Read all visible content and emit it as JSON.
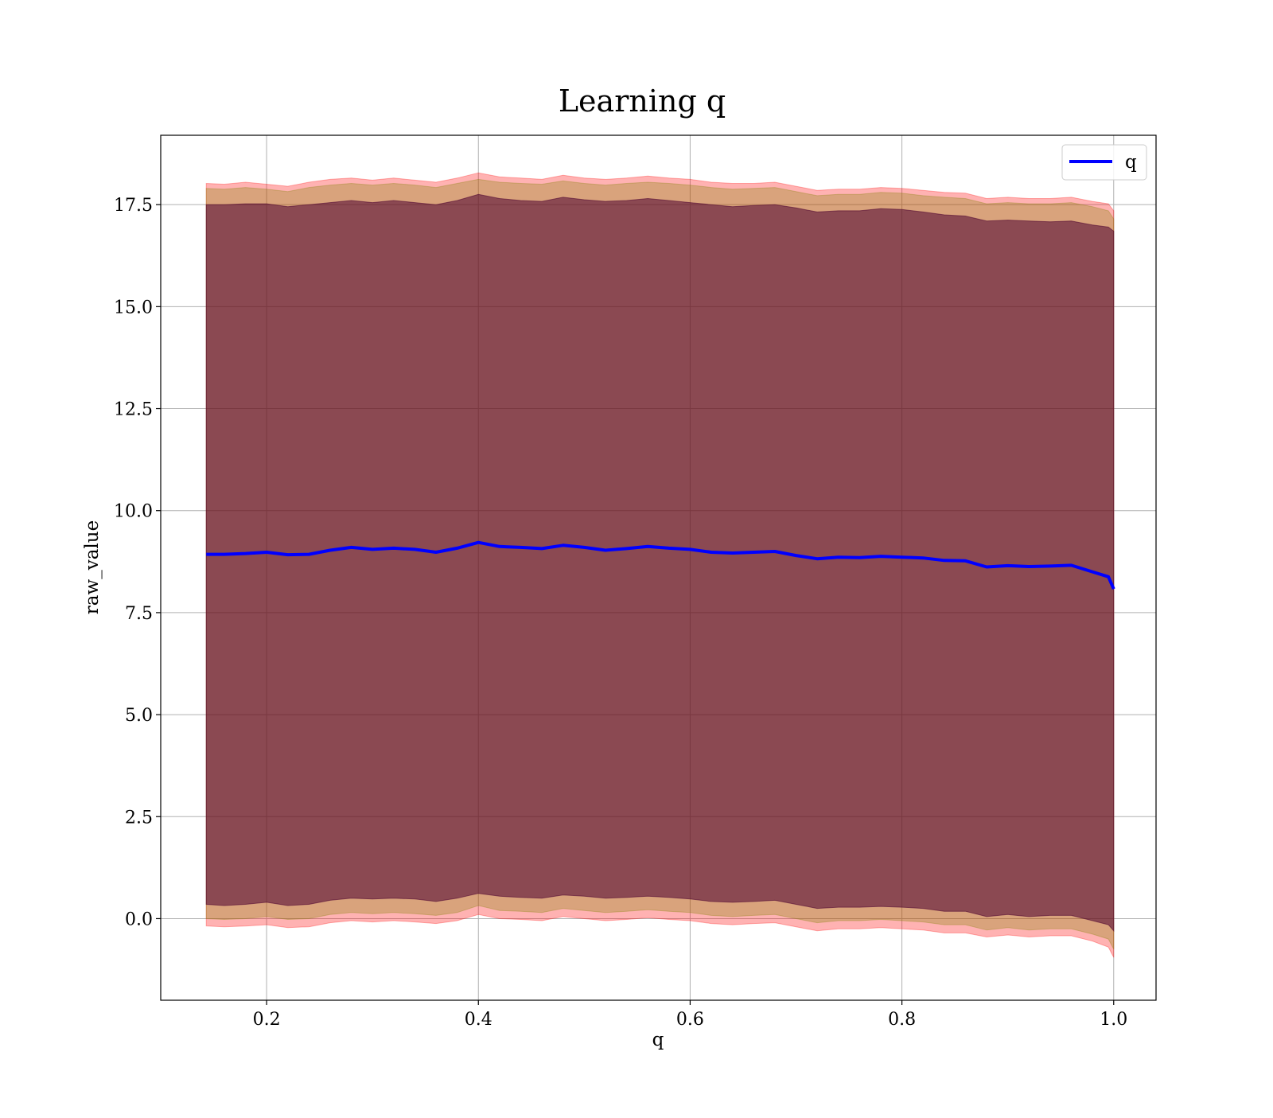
{
  "chart_data": {
    "type": "line",
    "title": "Learning q",
    "xlabel": "q",
    "ylabel": "raw_value",
    "xlim": [
      0.1,
      1.04
    ],
    "ylim": [
      -2.0,
      19.2
    ],
    "grid": true,
    "legend_position": "top-right",
    "x_ticks": [
      "0.2",
      "0.4",
      "0.6",
      "0.8",
      "1.0"
    ],
    "y_ticks": [
      "0.0",
      "2.5",
      "5.0",
      "7.5",
      "10.0",
      "12.5",
      "15.0",
      "17.5"
    ],
    "series": [
      {
        "name": "q",
        "color": "#0000ff",
        "x": [
          0.143,
          0.16,
          0.18,
          0.2,
          0.22,
          0.24,
          0.26,
          0.28,
          0.3,
          0.32,
          0.34,
          0.36,
          0.38,
          0.4,
          0.42,
          0.44,
          0.46,
          0.48,
          0.5,
          0.52,
          0.54,
          0.56,
          0.58,
          0.6,
          0.62,
          0.64,
          0.66,
          0.68,
          0.7,
          0.72,
          0.74,
          0.76,
          0.78,
          0.8,
          0.82,
          0.84,
          0.86,
          0.88,
          0.9,
          0.92,
          0.94,
          0.96,
          0.98,
          0.995,
          1.0
        ],
        "y": [
          8.93,
          8.93,
          8.95,
          8.98,
          8.92,
          8.93,
          9.03,
          9.1,
          9.05,
          9.08,
          9.05,
          8.98,
          9.08,
          9.22,
          9.12,
          9.1,
          9.07,
          9.15,
          9.1,
          9.03,
          9.07,
          9.12,
          9.08,
          9.05,
          8.98,
          8.96,
          8.98,
          9.0,
          8.9,
          8.82,
          8.86,
          8.85,
          8.88,
          8.86,
          8.84,
          8.78,
          8.77,
          8.62,
          8.65,
          8.63,
          8.64,
          8.66,
          8.5,
          8.38,
          8.08
        ]
      }
    ],
    "bands": [
      {
        "color": "#ff0000",
        "opacity": 0.3,
        "upper": [
          18.02,
          18.0,
          18.05,
          18.0,
          17.95,
          18.05,
          18.12,
          18.15,
          18.1,
          18.15,
          18.1,
          18.05,
          18.15,
          18.28,
          18.18,
          18.15,
          18.12,
          18.22,
          18.15,
          18.12,
          18.15,
          18.2,
          18.15,
          18.12,
          18.05,
          18.02,
          18.02,
          18.05,
          17.95,
          17.85,
          17.88,
          17.88,
          17.92,
          17.9,
          17.85,
          17.8,
          17.78,
          17.65,
          17.68,
          17.65,
          17.65,
          17.68,
          17.58,
          17.52,
          17.35
        ],
        "lower": [
          -0.18,
          -0.2,
          -0.18,
          -0.15,
          -0.22,
          -0.2,
          -0.1,
          -0.05,
          -0.08,
          -0.05,
          -0.08,
          -0.12,
          -0.05,
          0.1,
          0.0,
          -0.02,
          -0.05,
          0.05,
          0.0,
          -0.05,
          -0.02,
          0.02,
          -0.02,
          -0.05,
          -0.12,
          -0.15,
          -0.12,
          -0.1,
          -0.2,
          -0.3,
          -0.25,
          -0.25,
          -0.22,
          -0.25,
          -0.28,
          -0.35,
          -0.35,
          -0.45,
          -0.4,
          -0.45,
          -0.42,
          -0.42,
          -0.55,
          -0.7,
          -0.95
        ]
      },
      {
        "color": "#808000",
        "opacity": 0.3,
        "upper": [
          17.9,
          17.88,
          17.92,
          17.88,
          17.82,
          17.92,
          17.98,
          18.02,
          17.98,
          18.02,
          17.98,
          17.92,
          18.02,
          18.12,
          18.05,
          18.02,
          18.0,
          18.08,
          18.02,
          17.98,
          18.02,
          18.05,
          18.02,
          17.98,
          17.92,
          17.88,
          17.9,
          17.92,
          17.82,
          17.72,
          17.75,
          17.75,
          17.8,
          17.78,
          17.72,
          17.68,
          17.65,
          17.52,
          17.55,
          17.52,
          17.52,
          17.55,
          17.45,
          17.35,
          17.15
        ],
        "lower": [
          0.0,
          -0.02,
          0.0,
          0.05,
          -0.02,
          0.0,
          0.1,
          0.15,
          0.12,
          0.15,
          0.12,
          0.08,
          0.15,
          0.32,
          0.2,
          0.18,
          0.15,
          0.25,
          0.2,
          0.15,
          0.18,
          0.22,
          0.18,
          0.15,
          0.08,
          0.05,
          0.08,
          0.1,
          0.0,
          -0.1,
          -0.05,
          -0.05,
          -0.02,
          -0.05,
          -0.08,
          -0.15,
          -0.15,
          -0.28,
          -0.22,
          -0.28,
          -0.25,
          -0.25,
          -0.38,
          -0.5,
          -0.75
        ]
      },
      {
        "color": "#4b0030",
        "opacity": 0.55,
        "upper": [
          17.5,
          17.5,
          17.52,
          17.52,
          17.45,
          17.5,
          17.55,
          17.6,
          17.55,
          17.6,
          17.55,
          17.5,
          17.6,
          17.75,
          17.65,
          17.6,
          17.58,
          17.68,
          17.62,
          17.58,
          17.6,
          17.65,
          17.6,
          17.55,
          17.5,
          17.45,
          17.48,
          17.5,
          17.42,
          17.32,
          17.35,
          17.35,
          17.4,
          17.38,
          17.32,
          17.25,
          17.22,
          17.1,
          17.12,
          17.1,
          17.08,
          17.1,
          17.0,
          16.95,
          16.85
        ],
        "lower": [
          0.35,
          0.32,
          0.35,
          0.4,
          0.32,
          0.35,
          0.45,
          0.5,
          0.48,
          0.5,
          0.48,
          0.42,
          0.5,
          0.62,
          0.55,
          0.52,
          0.5,
          0.58,
          0.55,
          0.5,
          0.52,
          0.55,
          0.52,
          0.48,
          0.42,
          0.4,
          0.42,
          0.45,
          0.35,
          0.25,
          0.28,
          0.28,
          0.3,
          0.28,
          0.25,
          0.18,
          0.18,
          0.05,
          0.1,
          0.05,
          0.08,
          0.08,
          -0.05,
          -0.15,
          -0.3
        ]
      }
    ]
  }
}
